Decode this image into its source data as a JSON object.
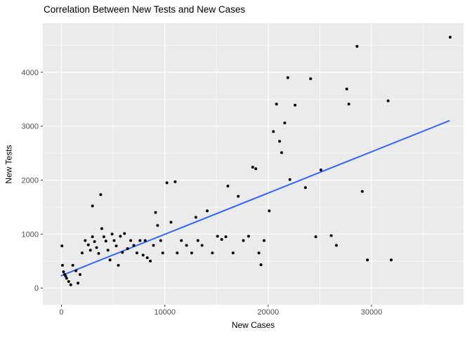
{
  "chart_data": {
    "type": "scatter",
    "title": "Correlation Between New Tests and New Cases",
    "xlabel": "New Cases",
    "ylabel": "New Tests",
    "xlim": [
      -1800,
      38900
    ],
    "ylim": [
      -310,
      4910
    ],
    "x_ticks": [
      0,
      10000,
      20000,
      30000
    ],
    "y_ticks": [
      0,
      1000,
      2000,
      3000,
      4000
    ],
    "x_minor": [
      5000,
      15000,
      25000,
      35000
    ],
    "y_minor": [
      500,
      1500,
      2500,
      3500,
      4500
    ],
    "grid": true,
    "legend": false,
    "colors": {
      "point": "#000000",
      "line": "#3366FF",
      "panel": "#EBEBEB",
      "grid": "#FFFFFF",
      "tick_text": "#4D4D4D",
      "tick_mark": "#333333",
      "title_text": "#000000"
    },
    "points": [
      [
        50,
        780
      ],
      [
        100,
        420
      ],
      [
        200,
        300
      ],
      [
        300,
        250
      ],
      [
        400,
        220
      ],
      [
        500,
        180
      ],
      [
        700,
        120
      ],
      [
        900,
        60
      ],
      [
        1100,
        420
      ],
      [
        1400,
        320
      ],
      [
        1600,
        90
      ],
      [
        1800,
        250
      ],
      [
        2000,
        650
      ],
      [
        2300,
        880
      ],
      [
        2600,
        800
      ],
      [
        2800,
        700
      ],
      [
        3000,
        1520
      ],
      [
        3000,
        950
      ],
      [
        3200,
        860
      ],
      [
        3400,
        750
      ],
      [
        3600,
        640
      ],
      [
        3800,
        1730
      ],
      [
        3900,
        1100
      ],
      [
        4100,
        950
      ],
      [
        4300,
        870
      ],
      [
        4500,
        700
      ],
      [
        4700,
        520
      ],
      [
        4900,
        1000
      ],
      [
        5100,
        880
      ],
      [
        5300,
        780
      ],
      [
        5500,
        420
      ],
      [
        5700,
        960
      ],
      [
        5900,
        660
      ],
      [
        6100,
        1010
      ],
      [
        6400,
        730
      ],
      [
        6700,
        880
      ],
      [
        7000,
        790
      ],
      [
        7300,
        650
      ],
      [
        7600,
        880
      ],
      [
        7900,
        610
      ],
      [
        8100,
        880
      ],
      [
        8300,
        560
      ],
      [
        8600,
        500
      ],
      [
        8900,
        790
      ],
      [
        9100,
        1400
      ],
      [
        9300,
        1160
      ],
      [
        9600,
        880
      ],
      [
        9800,
        650
      ],
      [
        10200,
        1950
      ],
      [
        10600,
        1220
      ],
      [
        11000,
        1970
      ],
      [
        11200,
        650
      ],
      [
        11600,
        880
      ],
      [
        12100,
        790
      ],
      [
        12600,
        650
      ],
      [
        13000,
        1310
      ],
      [
        13200,
        880
      ],
      [
        13600,
        790
      ],
      [
        14100,
        1430
      ],
      [
        14600,
        650
      ],
      [
        15100,
        960
      ],
      [
        15500,
        900
      ],
      [
        15900,
        950
      ],
      [
        16100,
        1890
      ],
      [
        16600,
        650
      ],
      [
        17100,
        1700
      ],
      [
        17600,
        880
      ],
      [
        18100,
        960
      ],
      [
        18500,
        2240
      ],
      [
        18800,
        2210
      ],
      [
        19100,
        650
      ],
      [
        19300,
        430
      ],
      [
        19600,
        880
      ],
      [
        20100,
        1430
      ],
      [
        20500,
        2900
      ],
      [
        20800,
        3410
      ],
      [
        21100,
        2720
      ],
      [
        21300,
        2510
      ],
      [
        21600,
        3060
      ],
      [
        21900,
        3900
      ],
      [
        22100,
        2010
      ],
      [
        22600,
        3390
      ],
      [
        23600,
        1860
      ],
      [
        24100,
        3880
      ],
      [
        24600,
        950
      ],
      [
        25100,
        2190
      ],
      [
        26100,
        970
      ],
      [
        26600,
        790
      ],
      [
        27600,
        3690
      ],
      [
        27800,
        3410
      ],
      [
        28600,
        4480
      ],
      [
        29100,
        1790
      ],
      [
        29600,
        520
      ],
      [
        31600,
        3470
      ],
      [
        31900,
        520
      ],
      [
        37600,
        4650
      ]
    ],
    "regression_line": {
      "x": [
        0,
        37500
      ],
      "y": [
        230,
        3100
      ]
    }
  }
}
